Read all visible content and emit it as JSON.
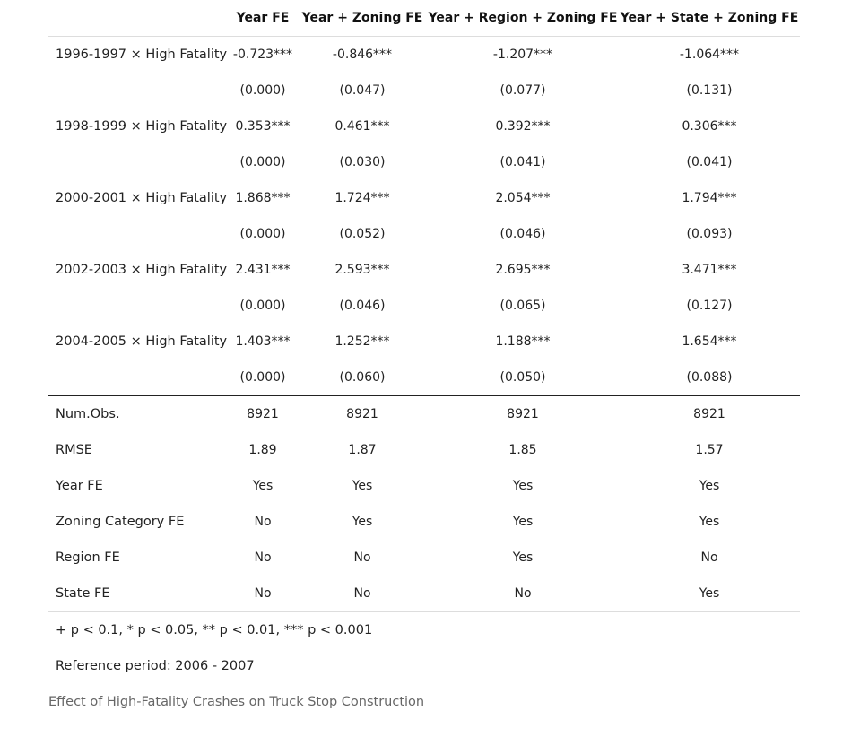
{
  "table": {
    "headers": [
      "",
      "Year FE",
      "Year + Zoning FE",
      "Year + Region + Zoning FE",
      "Year + State + Zoning FE"
    ],
    "coef_rows": [
      {
        "label": "1996-1997 × High Fatality",
        "coefs": [
          "-0.723***",
          "-0.846***",
          "-1.207***",
          "-1.064***"
        ],
        "ses": [
          "(0.000)",
          "(0.047)",
          "(0.077)",
          "(0.131)"
        ]
      },
      {
        "label": "1998-1999 × High Fatality",
        "coefs": [
          "0.353***",
          "0.461***",
          "0.392***",
          "0.306***"
        ],
        "ses": [
          "(0.000)",
          "(0.030)",
          "(0.041)",
          "(0.041)"
        ]
      },
      {
        "label": "2000-2001 × High Fatality",
        "coefs": [
          "1.868***",
          "1.724***",
          "2.054***",
          "1.794***"
        ],
        "ses": [
          "(0.000)",
          "(0.052)",
          "(0.046)",
          "(0.093)"
        ]
      },
      {
        "label": "2002-2003 × High Fatality",
        "coefs": [
          "2.431***",
          "2.593***",
          "2.695***",
          "3.471***"
        ],
        "ses": [
          "(0.000)",
          "(0.046)",
          "(0.065)",
          "(0.127)"
        ]
      },
      {
        "label": "2004-2005 × High Fatality",
        "coefs": [
          "1.403***",
          "1.252***",
          "1.188***",
          "1.654***"
        ],
        "ses": [
          "(0.000)",
          "(0.060)",
          "(0.050)",
          "(0.088)"
        ]
      }
    ],
    "stat_rows": [
      {
        "label": "Num.Obs.",
        "values": [
          "8921",
          "8921",
          "8921",
          "8921"
        ]
      },
      {
        "label": "RMSE",
        "values": [
          "1.89",
          "1.87",
          "1.85",
          "1.57"
        ]
      },
      {
        "label": "Year FE",
        "values": [
          "Yes",
          "Yes",
          "Yes",
          "Yes"
        ]
      },
      {
        "label": "Zoning Category FE",
        "values": [
          "No",
          "Yes",
          "Yes",
          "Yes"
        ]
      },
      {
        "label": "Region FE",
        "values": [
          "No",
          "No",
          "Yes",
          "No"
        ]
      },
      {
        "label": "State FE",
        "values": [
          "No",
          "No",
          "No",
          "Yes"
        ]
      }
    ],
    "notes": [
      "+ p < 0.1, * p < 0.05, ** p < 0.01, *** p < 0.001",
      "Reference period: 2006 - 2007"
    ]
  },
  "caption": "Effect of High-Fatality Crashes on Truck Stop Construction"
}
